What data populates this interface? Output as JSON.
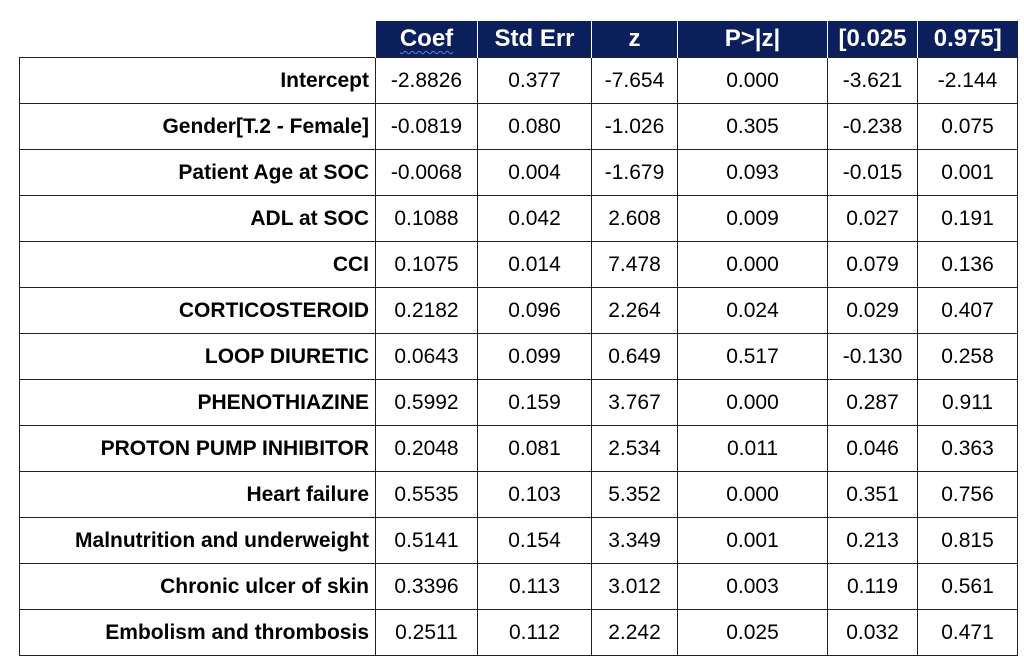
{
  "header": {
    "coef": "Coef",
    "std_err": "Std Err",
    "z": "z",
    "p": "P>|z|",
    "ci_low": "[0.025",
    "ci_high": "0.975]"
  },
  "rows": [
    {
      "label": "Intercept",
      "coef": "-2.8826",
      "std_err": "0.377",
      "z": "-7.654",
      "p": "0.000",
      "ci_low": "-3.621",
      "ci_high": "-2.144"
    },
    {
      "label": "Gender[T.2 - Female]",
      "coef": "-0.0819",
      "std_err": "0.080",
      "z": "-1.026",
      "p": "0.305",
      "ci_low": "-0.238",
      "ci_high": "0.075"
    },
    {
      "label": "Patient Age at SOC",
      "coef": "-0.0068",
      "std_err": "0.004",
      "z": "-1.679",
      "p": "0.093",
      "ci_low": "-0.015",
      "ci_high": "0.001"
    },
    {
      "label": "ADL at SOC",
      "coef": "0.1088",
      "std_err": "0.042",
      "z": "2.608",
      "p": "0.009",
      "ci_low": "0.027",
      "ci_high": "0.191"
    },
    {
      "label": "CCI",
      "coef": "0.1075",
      "std_err": "0.014",
      "z": "7.478",
      "p": "0.000",
      "ci_low": "0.079",
      "ci_high": "0.136"
    },
    {
      "label": "CORTICOSTEROID",
      "coef": "0.2182",
      "std_err": "0.096",
      "z": "2.264",
      "p": "0.024",
      "ci_low": "0.029",
      "ci_high": "0.407"
    },
    {
      "label": "LOOP DIURETIC",
      "coef": "0.0643",
      "std_err": "0.099",
      "z": "0.649",
      "p": "0.517",
      "ci_low": "-0.130",
      "ci_high": "0.258"
    },
    {
      "label": "PHENOTHIAZINE",
      "coef": "0.5992",
      "std_err": "0.159",
      "z": "3.767",
      "p": "0.000",
      "ci_low": "0.287",
      "ci_high": "0.911"
    },
    {
      "label": "PROTON PUMP INHIBITOR",
      "coef": "0.2048",
      "std_err": "0.081",
      "z": "2.534",
      "p": "0.011",
      "ci_low": "0.046",
      "ci_high": "0.363"
    },
    {
      "label": "Heart failure",
      "coef": "0.5535",
      "std_err": "0.103",
      "z": "5.352",
      "p": "0.000",
      "ci_low": "0.351",
      "ci_high": "0.756"
    },
    {
      "label": "Malnutrition and underweight",
      "coef": "0.5141",
      "std_err": "0.154",
      "z": "3.349",
      "p": "0.001",
      "ci_low": "0.213",
      "ci_high": "0.815"
    },
    {
      "label": "Chronic ulcer of skin",
      "coef": "0.3396",
      "std_err": "0.113",
      "z": "3.012",
      "p": "0.003",
      "ci_low": "0.119",
      "ci_high": "0.561"
    },
    {
      "label": "Embolism and thrombosis",
      "coef": "0.2511",
      "std_err": "0.112",
      "z": "2.242",
      "p": "0.025",
      "ci_low": "0.032",
      "ci_high": "0.471"
    }
  ],
  "colors": {
    "header_bg": "#0a1f5c",
    "header_text": "#ffffff",
    "border": "#222222"
  }
}
